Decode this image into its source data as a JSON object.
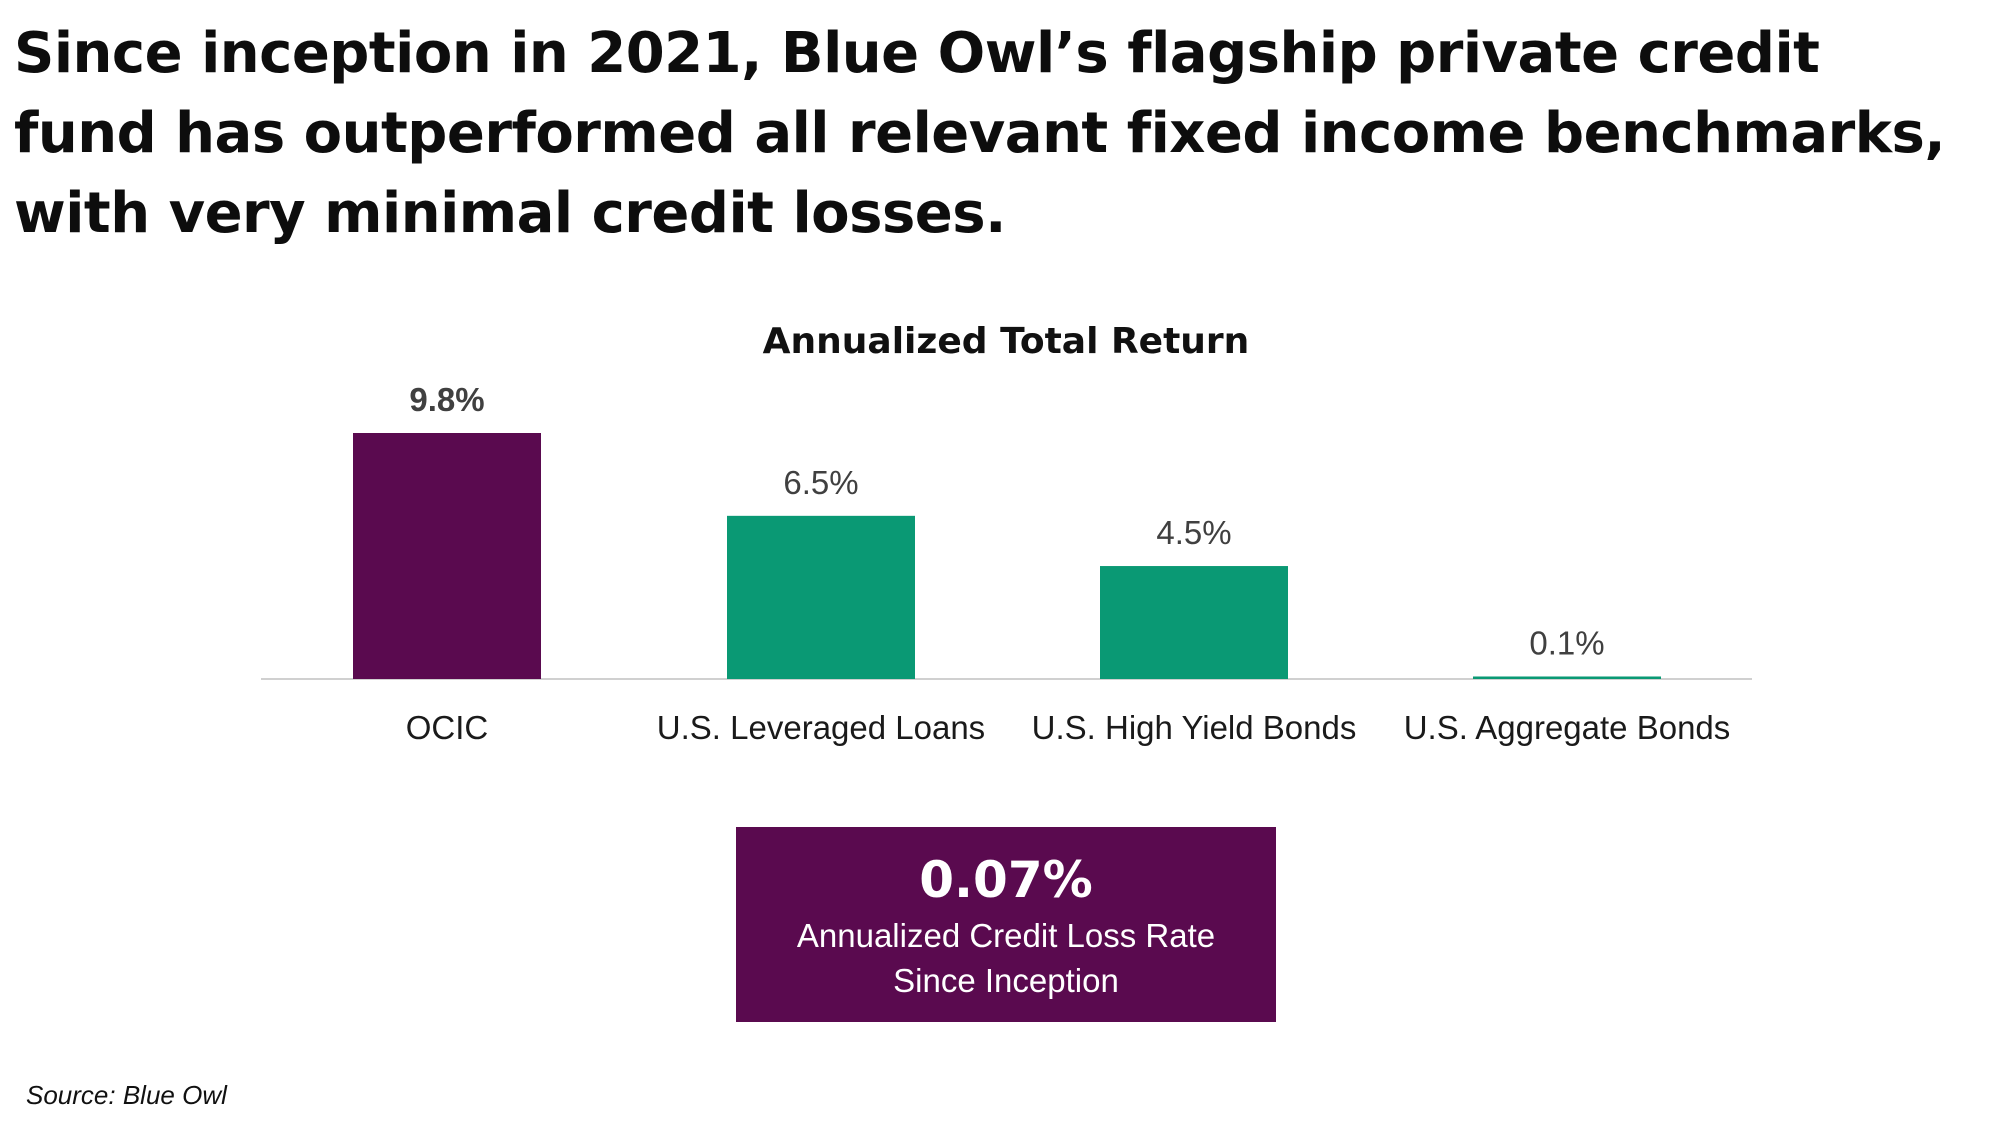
{
  "headline": "Since inception in 2021, Blue Owl’s flagship private credit fund has outperformed all relevant fixed income benchmarks, with very minimal credit losses.",
  "chart_data": {
    "type": "bar",
    "title": "Annualized Total Return",
    "categories": [
      "OCIC",
      "U.S. Leveraged Loans",
      "U.S. High Yield Bonds",
      "U.S. Aggregate Bonds"
    ],
    "values": [
      9.8,
      6.5,
      4.5,
      0.1
    ],
    "data_labels": [
      "9.8%",
      "6.5%",
      "4.5%",
      "0.1%"
    ],
    "colors": [
      "#5a0a4f",
      "#0a9974",
      "#0a9974",
      "#0a9974"
    ],
    "ylim": [
      0,
      9.8
    ],
    "grid": false,
    "legend": "none"
  },
  "callout": {
    "value": "0.07%",
    "caption_line1": "Annualized Credit Loss Rate",
    "caption_line2": "Since Inception"
  },
  "source": "Source: Blue Owl"
}
